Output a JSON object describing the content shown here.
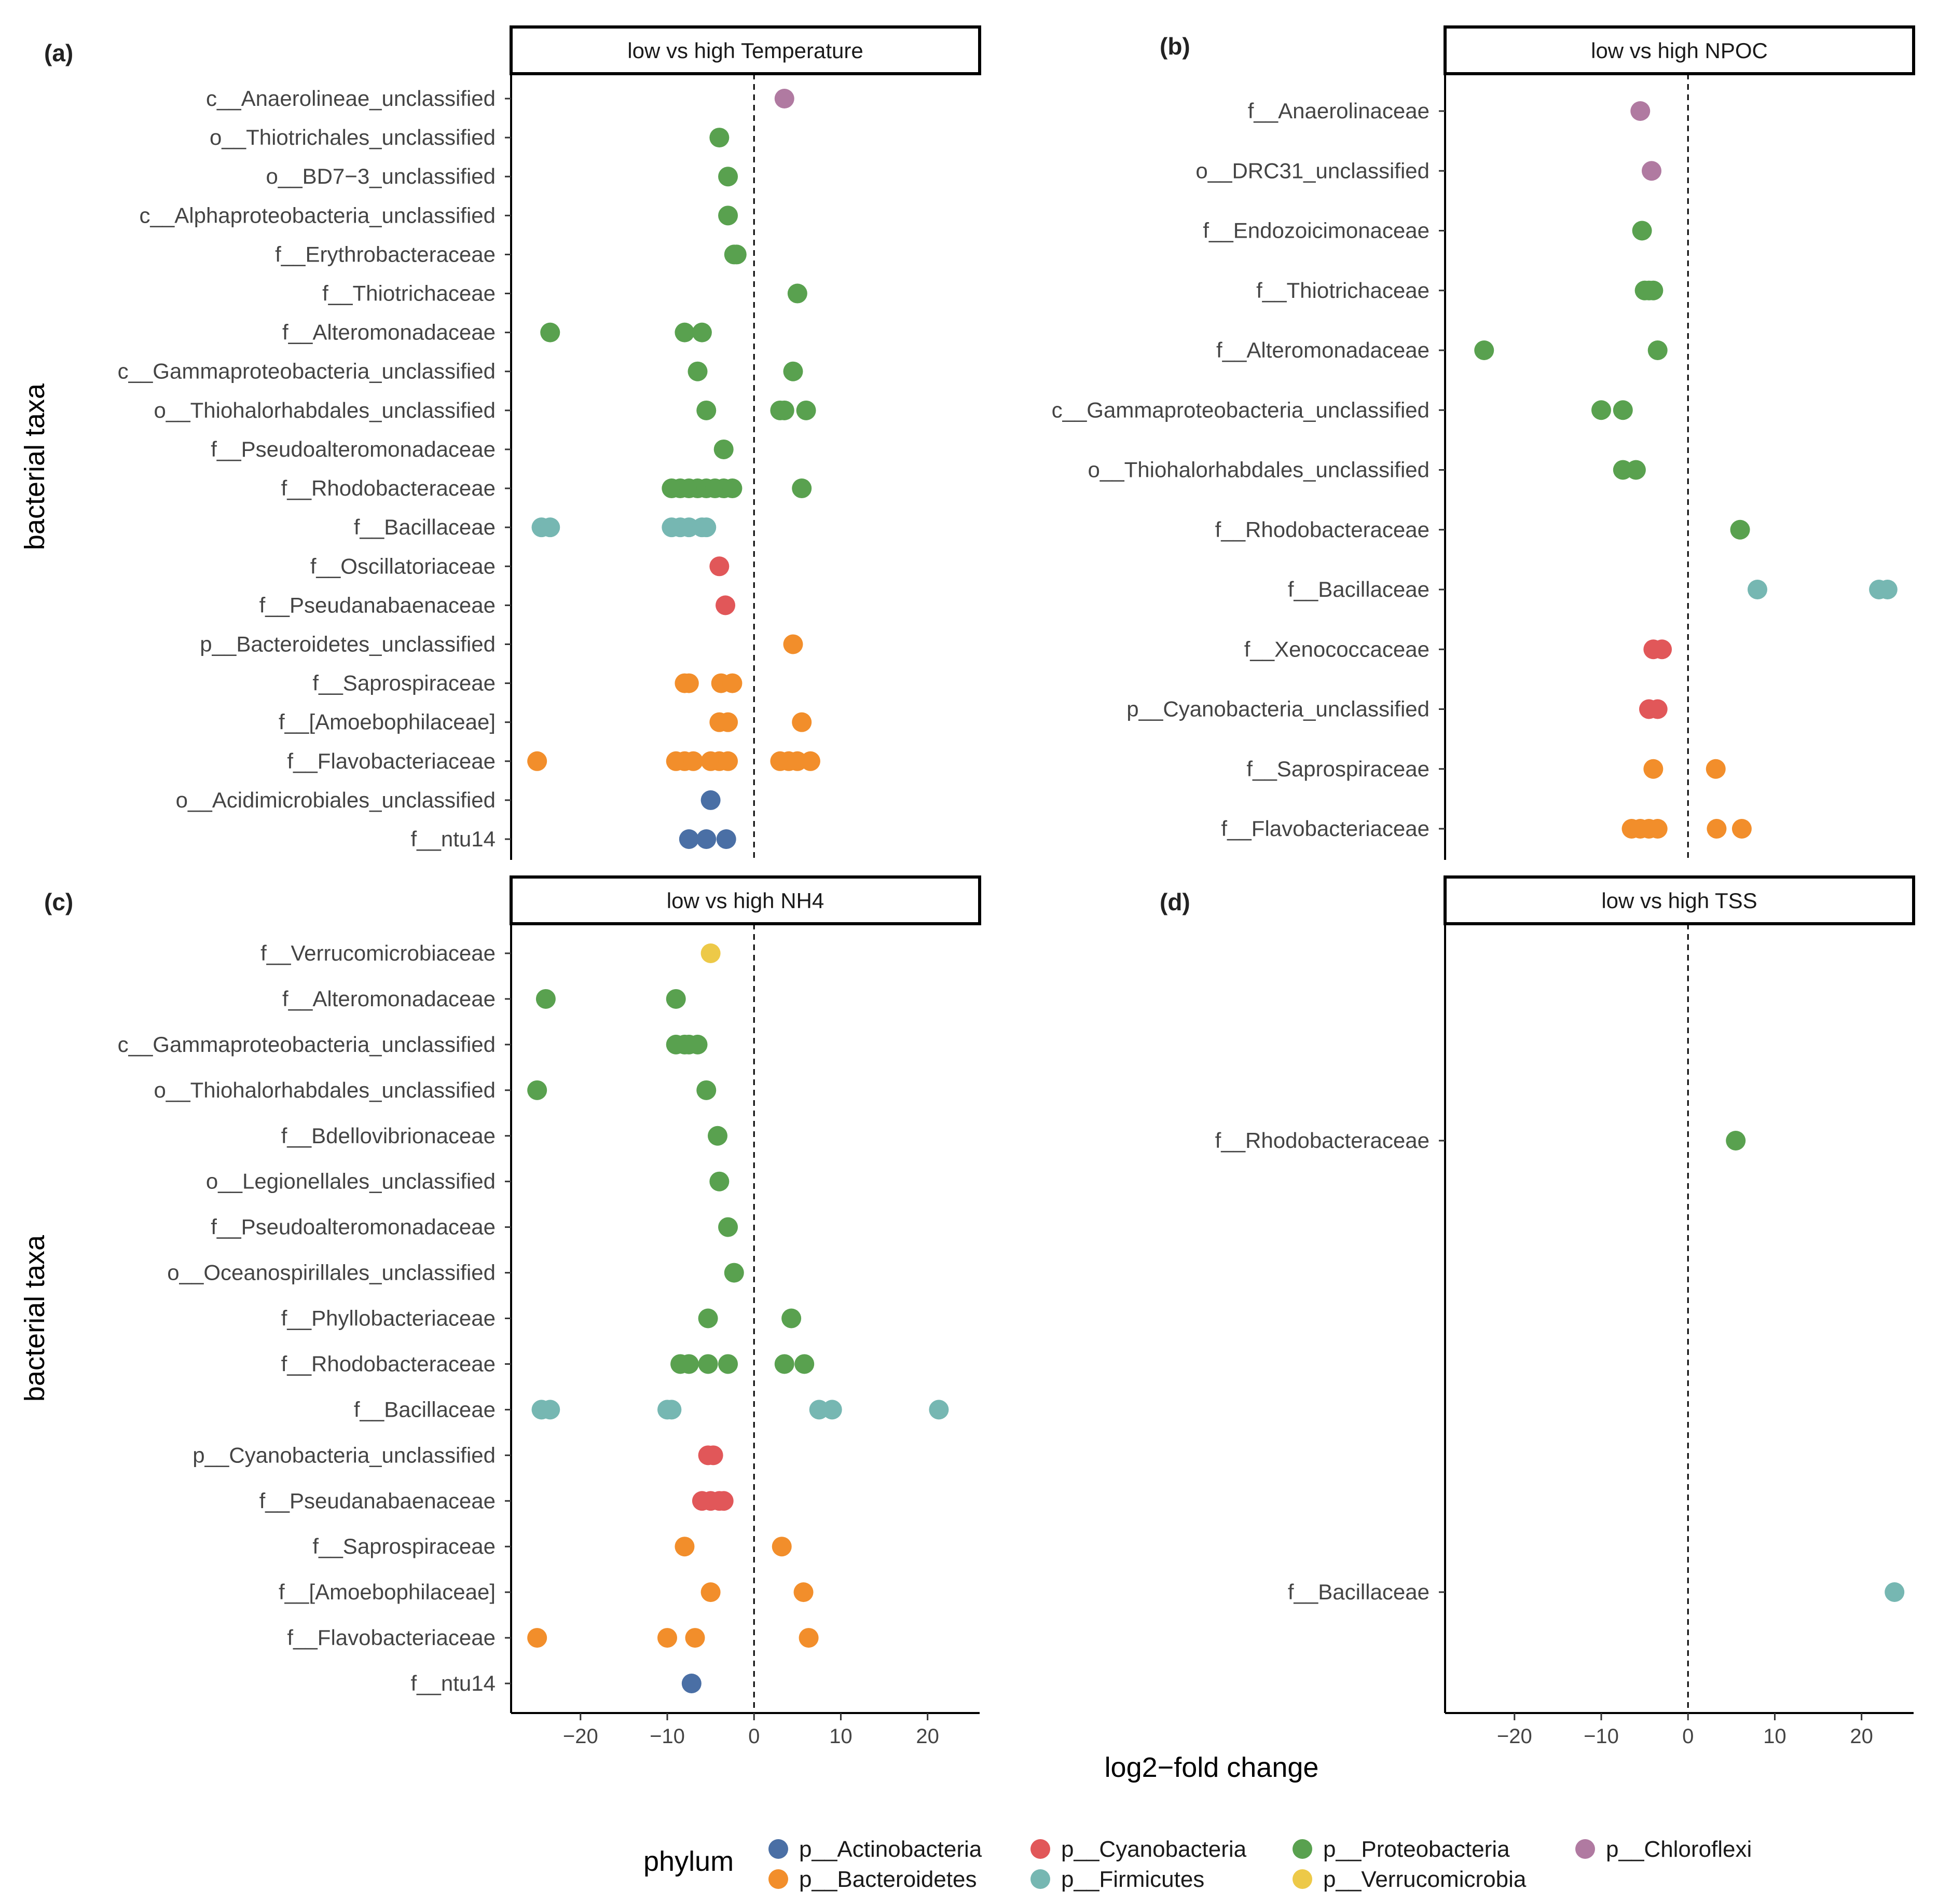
{
  "figure": {
    "x_axis_label": "log2−fold change",
    "y_axis_label": "bacterial taxa",
    "legend_title": "phylum"
  },
  "phyla": [
    {
      "key": "act",
      "name": "p__Actinobacteria",
      "color": "#4a6fa5"
    },
    {
      "key": "bac",
      "name": "p__Bacteroidetes",
      "color": "#f28e2b"
    },
    {
      "key": "cya",
      "name": "p__Cyanobacteria",
      "color": "#e15759"
    },
    {
      "key": "fir",
      "name": "p__Firmicutes",
      "color": "#76b7b2"
    },
    {
      "key": "pro",
      "name": "p__Proteobacteria",
      "color": "#59a14f"
    },
    {
      "key": "ver",
      "name": "p__Verrucomicrobia",
      "color": "#edc948"
    },
    {
      "key": "chl",
      "name": "p__Chloroflexi",
      "color": "#b07aa1"
    }
  ],
  "chart_data": [
    {
      "type": "scatter",
      "panel": "(a)",
      "title": "low vs high Temperature",
      "xlim": [
        -28,
        26
      ],
      "xticks": [
        -20,
        -10,
        0,
        10,
        20
      ],
      "xtick_labels": [
        "−20",
        "−10",
        "0",
        "10",
        "20"
      ],
      "show_x_axis": false,
      "show_y_title": true,
      "rows": [
        {
          "label": "c__Anaerolineae_unclassified",
          "phylum": "chl",
          "values": [
            3.5
          ]
        },
        {
          "label": "o__Thiotrichales_unclassified",
          "phylum": "pro",
          "values": [
            -4
          ]
        },
        {
          "label": "o__BD7−3_unclassified",
          "phylum": "pro",
          "values": [
            -3
          ]
        },
        {
          "label": "c__Alphaproteobacteria_unclassified",
          "phylum": "pro",
          "values": [
            -3
          ]
        },
        {
          "label": "f__Erythrobacteraceae",
          "phylum": "pro",
          "values": [
            -2.3,
            -2
          ]
        },
        {
          "label": "f__Thiotrichaceae",
          "phylum": "pro",
          "values": [
            5
          ]
        },
        {
          "label": "f__Alteromonadaceae",
          "phylum": "pro",
          "values": [
            -23.5,
            -8,
            -6
          ]
        },
        {
          "label": "c__Gammaproteobacteria_unclassified",
          "phylum": "pro",
          "values": [
            -6.5,
            4.5
          ]
        },
        {
          "label": "o__Thiohalorhabdales_unclassified",
          "phylum": "pro",
          "values": [
            -5.5,
            3,
            3.5,
            6
          ]
        },
        {
          "label": "f__Pseudoalteromonadaceae",
          "phylum": "pro",
          "values": [
            -3.5
          ]
        },
        {
          "label": "f__Rhodobacteraceae",
          "phylum": "pro",
          "values": [
            -9.5,
            -8.5,
            -7.5,
            -6.5,
            -5.5,
            -4.5,
            -3.5,
            -2.5,
            5.5
          ]
        },
        {
          "label": "f__Bacillaceae",
          "phylum": "fir",
          "values": [
            -24.5,
            -23.5,
            -9.5,
            -8.5,
            -7.5,
            -6,
            -5.5
          ]
        },
        {
          "label": "f__Oscillatoriaceae",
          "phylum": "cya",
          "values": [
            -4
          ]
        },
        {
          "label": "f__Pseudanabaenaceae",
          "phylum": "cya",
          "values": [
            -3.3
          ]
        },
        {
          "label": "p__Bacteroidetes_unclassified",
          "phylum": "bac",
          "values": [
            4.5
          ]
        },
        {
          "label": "f__Saprospiraceae",
          "phylum": "bac",
          "values": [
            -8,
            -7.5,
            -3.8,
            -2.5
          ]
        },
        {
          "label": "f__[Amoebophilaceae]",
          "phylum": "bac",
          "values": [
            -4,
            -3,
            5.5
          ]
        },
        {
          "label": "f__Flavobacteriaceae",
          "phylum": "bac",
          "values": [
            -25,
            -9,
            -8,
            -7,
            -5,
            -4,
            -3,
            3,
            4,
            5,
            6.5
          ]
        },
        {
          "label": "o__Acidimicrobiales_unclassified",
          "phylum": "act",
          "values": [
            -5
          ]
        },
        {
          "label": "f__ntu14",
          "phylum": "act",
          "values": [
            -7.5,
            -5.5,
            -3.2
          ]
        }
      ]
    },
    {
      "type": "scatter",
      "panel": "(b)",
      "title": "low vs high NPOC",
      "xlim": [
        -28,
        26
      ],
      "xticks": [
        -20,
        -10,
        0,
        10,
        20
      ],
      "xtick_labels": [
        "−20",
        "−10",
        "0",
        "10",
        "20"
      ],
      "show_x_axis": false,
      "show_y_title": false,
      "rows": [
        {
          "label": "f__Anaerolinaceae",
          "phylum": "chl",
          "values": [
            -5.5
          ]
        },
        {
          "label": "o__DRC31_unclassified",
          "phylum": "chl",
          "values": [
            -4.2
          ]
        },
        {
          "label": "f__Endozoicimonaceae",
          "phylum": "pro",
          "values": [
            -5.3
          ]
        },
        {
          "label": "f__Thiotrichaceae",
          "phylum": "pro",
          "values": [
            -5,
            -4.5,
            -4
          ]
        },
        {
          "label": "f__Alteromonadaceae",
          "phylum": "pro",
          "values": [
            -23.5,
            -3.5
          ]
        },
        {
          "label": "c__Gammaproteobacteria_unclassified",
          "phylum": "pro",
          "values": [
            -10,
            -7.5
          ]
        },
        {
          "label": "o__Thiohalorhabdales_unclassified",
          "phylum": "pro",
          "values": [
            -7.5,
            -6
          ]
        },
        {
          "label": "f__Rhodobacteraceae",
          "phylum": "pro",
          "values": [
            6
          ]
        },
        {
          "label": "f__Bacillaceae",
          "phylum": "fir",
          "values": [
            8,
            22,
            23
          ]
        },
        {
          "label": "f__Xenococcaceae",
          "phylum": "cya",
          "values": [
            -4,
            -3
          ]
        },
        {
          "label": "p__Cyanobacteria_unclassified",
          "phylum": "cya",
          "values": [
            -4.5,
            -3.5
          ]
        },
        {
          "label": "f__Saprospiraceae",
          "phylum": "bac",
          "values": [
            -4,
            3.2
          ]
        },
        {
          "label": "f__Flavobacteriaceae",
          "phylum": "bac",
          "values": [
            -6.5,
            -5.5,
            -4.5,
            -3.5,
            3.3,
            6.2
          ]
        }
      ]
    },
    {
      "type": "scatter",
      "panel": "(c)",
      "title": "low vs high NH4",
      "xlim": [
        -28,
        26
      ],
      "xticks": [
        -20,
        -10,
        0,
        10,
        20
      ],
      "xtick_labels": [
        "−20",
        "−10",
        "0",
        "10",
        "20"
      ],
      "show_x_axis": true,
      "show_y_title": true,
      "rows": [
        {
          "label": "f__Verrucomicrobiaceae",
          "phylum": "ver",
          "values": [
            -5
          ]
        },
        {
          "label": "f__Alteromonadaceae",
          "phylum": "pro",
          "values": [
            -24,
            -9
          ]
        },
        {
          "label": "c__Gammaproteobacteria_unclassified",
          "phylum": "pro",
          "values": [
            -9,
            -8,
            -7.5,
            -6.5
          ]
        },
        {
          "label": "o__Thiohalorhabdales_unclassified",
          "phylum": "pro",
          "values": [
            -25,
            -5.5
          ]
        },
        {
          "label": "f__Bdellovibrionaceae",
          "phylum": "pro",
          "values": [
            -4.2
          ]
        },
        {
          "label": "o__Legionellales_unclassified",
          "phylum": "pro",
          "values": [
            -4
          ]
        },
        {
          "label": "f__Pseudoalteromonadaceae",
          "phylum": "pro",
          "values": [
            -3
          ]
        },
        {
          "label": "o__Oceanospirillales_unclassified",
          "phylum": "pro",
          "values": [
            -2.3
          ]
        },
        {
          "label": "f__Phyllobacteriaceae",
          "phylum": "pro",
          "values": [
            -5.3,
            4.3
          ]
        },
        {
          "label": "f__Rhodobacteraceae",
          "phylum": "pro",
          "values": [
            -8.5,
            -7.5,
            -5.3,
            -3,
            3.5,
            5.8
          ]
        },
        {
          "label": "f__Bacillaceae",
          "phylum": "fir",
          "values": [
            -24.5,
            -23.5,
            -10,
            -9.5,
            7.5,
            9,
            21.3
          ]
        },
        {
          "label": "p__Cyanobacteria_unclassified",
          "phylum": "cya",
          "values": [
            -5.3,
            -4.7
          ]
        },
        {
          "label": "f__Pseudanabaenaceae",
          "phylum": "cya",
          "values": [
            -6,
            -5,
            -4,
            -3.5
          ]
        },
        {
          "label": "f__Saprospiraceae",
          "phylum": "bac",
          "values": [
            -8,
            3.2
          ]
        },
        {
          "label": "f__[Amoebophilaceae]",
          "phylum": "bac",
          "values": [
            -5,
            5.7
          ]
        },
        {
          "label": "f__Flavobacteriaceae",
          "phylum": "bac",
          "values": [
            -25,
            -10,
            -6.8,
            6.3
          ]
        },
        {
          "label": "f__ntu14",
          "phylum": "act",
          "values": [
            -7.2
          ]
        }
      ]
    },
    {
      "type": "scatter",
      "panel": "(d)",
      "title": "low vs high TSS",
      "xlim": [
        -28,
        26
      ],
      "xticks": [
        -20,
        -10,
        0,
        10,
        20
      ],
      "xtick_labels": [
        "−20",
        "−10",
        "0",
        "10",
        "20"
      ],
      "show_x_axis": true,
      "show_y_title": false,
      "rows": [
        {
          "label": "f__Rhodobacteraceae",
          "phylum": "pro",
          "values": [
            5.5
          ]
        },
        {
          "label": "f__Bacillaceae",
          "phylum": "fir",
          "values": [
            23.8
          ]
        }
      ]
    }
  ]
}
